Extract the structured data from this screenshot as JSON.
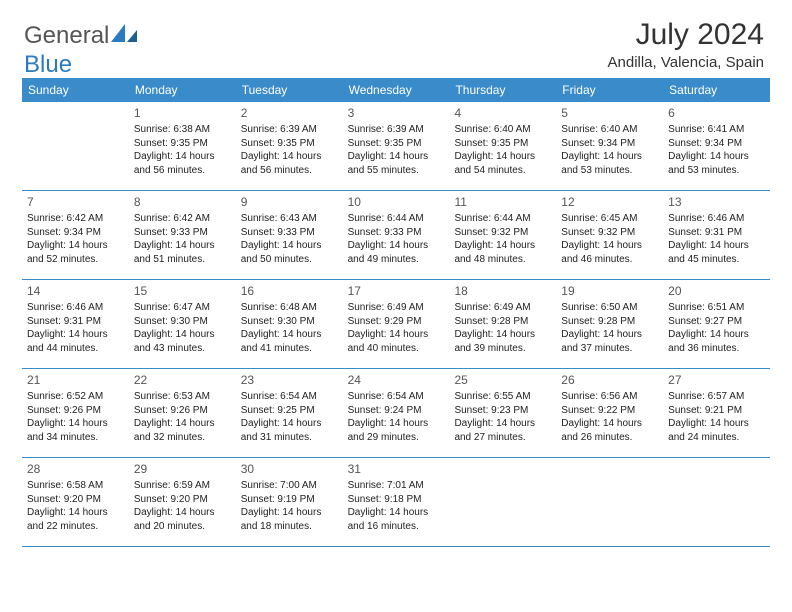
{
  "brand": {
    "part1": "General",
    "part2": "Blue"
  },
  "title": "July 2024",
  "location": "Andilla, Valencia, Spain",
  "colors": {
    "header_bg": "#3a8bc9",
    "header_text": "#ffffff",
    "border": "#3a8bc9",
    "brand_blue": "#2a7bbf",
    "text": "#222222"
  },
  "day_names": [
    "Sunday",
    "Monday",
    "Tuesday",
    "Wednesday",
    "Thursday",
    "Friday",
    "Saturday"
  ],
  "start_offset": 1,
  "days": [
    {
      "n": "1",
      "sr": "6:38 AM",
      "ss": "9:35 PM",
      "dl": "14 hours and 56 minutes."
    },
    {
      "n": "2",
      "sr": "6:39 AM",
      "ss": "9:35 PM",
      "dl": "14 hours and 56 minutes."
    },
    {
      "n": "3",
      "sr": "6:39 AM",
      "ss": "9:35 PM",
      "dl": "14 hours and 55 minutes."
    },
    {
      "n": "4",
      "sr": "6:40 AM",
      "ss": "9:35 PM",
      "dl": "14 hours and 54 minutes."
    },
    {
      "n": "5",
      "sr": "6:40 AM",
      "ss": "9:34 PM",
      "dl": "14 hours and 53 minutes."
    },
    {
      "n": "6",
      "sr": "6:41 AM",
      "ss": "9:34 PM",
      "dl": "14 hours and 53 minutes."
    },
    {
      "n": "7",
      "sr": "6:42 AM",
      "ss": "9:34 PM",
      "dl": "14 hours and 52 minutes."
    },
    {
      "n": "8",
      "sr": "6:42 AM",
      "ss": "9:33 PM",
      "dl": "14 hours and 51 minutes."
    },
    {
      "n": "9",
      "sr": "6:43 AM",
      "ss": "9:33 PM",
      "dl": "14 hours and 50 minutes."
    },
    {
      "n": "10",
      "sr": "6:44 AM",
      "ss": "9:33 PM",
      "dl": "14 hours and 49 minutes."
    },
    {
      "n": "11",
      "sr": "6:44 AM",
      "ss": "9:32 PM",
      "dl": "14 hours and 48 minutes."
    },
    {
      "n": "12",
      "sr": "6:45 AM",
      "ss": "9:32 PM",
      "dl": "14 hours and 46 minutes."
    },
    {
      "n": "13",
      "sr": "6:46 AM",
      "ss": "9:31 PM",
      "dl": "14 hours and 45 minutes."
    },
    {
      "n": "14",
      "sr": "6:46 AM",
      "ss": "9:31 PM",
      "dl": "14 hours and 44 minutes."
    },
    {
      "n": "15",
      "sr": "6:47 AM",
      "ss": "9:30 PM",
      "dl": "14 hours and 43 minutes."
    },
    {
      "n": "16",
      "sr": "6:48 AM",
      "ss": "9:30 PM",
      "dl": "14 hours and 41 minutes."
    },
    {
      "n": "17",
      "sr": "6:49 AM",
      "ss": "9:29 PM",
      "dl": "14 hours and 40 minutes."
    },
    {
      "n": "18",
      "sr": "6:49 AM",
      "ss": "9:28 PM",
      "dl": "14 hours and 39 minutes."
    },
    {
      "n": "19",
      "sr": "6:50 AM",
      "ss": "9:28 PM",
      "dl": "14 hours and 37 minutes."
    },
    {
      "n": "20",
      "sr": "6:51 AM",
      "ss": "9:27 PM",
      "dl": "14 hours and 36 minutes."
    },
    {
      "n": "21",
      "sr": "6:52 AM",
      "ss": "9:26 PM",
      "dl": "14 hours and 34 minutes."
    },
    {
      "n": "22",
      "sr": "6:53 AM",
      "ss": "9:26 PM",
      "dl": "14 hours and 32 minutes."
    },
    {
      "n": "23",
      "sr": "6:54 AM",
      "ss": "9:25 PM",
      "dl": "14 hours and 31 minutes."
    },
    {
      "n": "24",
      "sr": "6:54 AM",
      "ss": "9:24 PM",
      "dl": "14 hours and 29 minutes."
    },
    {
      "n": "25",
      "sr": "6:55 AM",
      "ss": "9:23 PM",
      "dl": "14 hours and 27 minutes."
    },
    {
      "n": "26",
      "sr": "6:56 AM",
      "ss": "9:22 PM",
      "dl": "14 hours and 26 minutes."
    },
    {
      "n": "27",
      "sr": "6:57 AM",
      "ss": "9:21 PM",
      "dl": "14 hours and 24 minutes."
    },
    {
      "n": "28",
      "sr": "6:58 AM",
      "ss": "9:20 PM",
      "dl": "14 hours and 22 minutes."
    },
    {
      "n": "29",
      "sr": "6:59 AM",
      "ss": "9:20 PM",
      "dl": "14 hours and 20 minutes."
    },
    {
      "n": "30",
      "sr": "7:00 AM",
      "ss": "9:19 PM",
      "dl": "14 hours and 18 minutes."
    },
    {
      "n": "31",
      "sr": "7:01 AM",
      "ss": "9:18 PM",
      "dl": "14 hours and 16 minutes."
    }
  ],
  "labels": {
    "sunrise": "Sunrise:",
    "sunset": "Sunset:",
    "daylight": "Daylight:"
  }
}
